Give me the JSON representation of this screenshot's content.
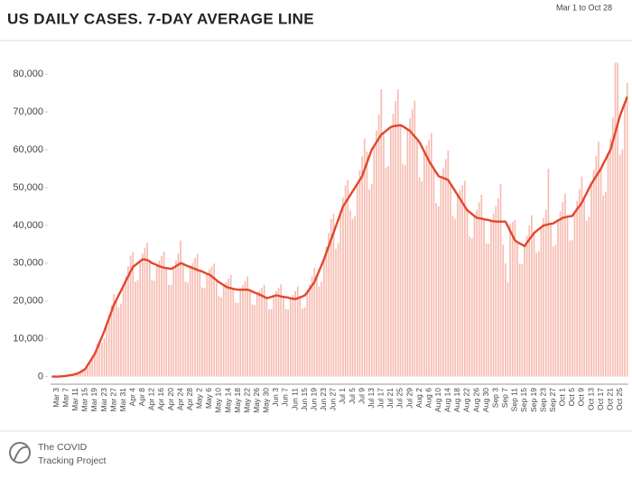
{
  "chart_data": {
    "type": "bar",
    "title": "US DAILY CASES. 7-DAY AVERAGE LINE",
    "subtitle": "Mar 1 to Oct 28",
    "source": [
      "The COVID",
      "Tracking Project"
    ],
    "categories": [
      null,
      null,
      "Mar 3",
      null,
      null,
      null,
      "Mar 7",
      null,
      null,
      null,
      "Mar 11",
      null,
      null,
      null,
      "Mar 15",
      null,
      null,
      null,
      "Mar 19",
      null,
      null,
      null,
      "Mar 23",
      null,
      null,
      null,
      "Mar 27",
      null,
      null,
      null,
      "Mar 31",
      null,
      null,
      null,
      "Apr 4",
      null,
      null,
      null,
      "Apr 8",
      null,
      null,
      null,
      "Apr 12",
      null,
      null,
      null,
      "Apr 16",
      null,
      null,
      null,
      "Apr 20",
      null,
      null,
      null,
      "Apr 24",
      null,
      null,
      null,
      "Apr 28",
      null,
      null,
      null,
      "May 2",
      null,
      null,
      null,
      "May 6",
      null,
      null,
      null,
      "May 10",
      null,
      null,
      null,
      "May 14",
      null,
      null,
      null,
      "May 18",
      null,
      null,
      null,
      "May 22",
      null,
      null,
      null,
      "May 26",
      null,
      null,
      null,
      "May 30",
      null,
      null,
      null,
      "Jun 3",
      null,
      null,
      null,
      "Jun 7",
      null,
      null,
      null,
      "Jun 11",
      null,
      null,
      null,
      "Jun 15",
      null,
      null,
      null,
      "Jun 19",
      null,
      null,
      null,
      "Jun 23",
      null,
      null,
      null,
      "Jun 27",
      null,
      null,
      null,
      "Jul 1",
      null,
      null,
      null,
      "Jul 5",
      null,
      null,
      null,
      "Jul 9",
      null,
      null,
      null,
      "Jul 13",
      null,
      null,
      null,
      "Jul 17",
      null,
      null,
      null,
      "Jul 21",
      null,
      null,
      null,
      "Jul 25",
      null,
      null,
      null,
      "Jul 29",
      null,
      null,
      null,
      "Aug 2",
      null,
      null,
      null,
      "Aug 6",
      null,
      null,
      null,
      "Aug 10",
      null,
      null,
      null,
      "Aug 14",
      null,
      null,
      null,
      "Aug 18",
      null,
      null,
      null,
      "Aug 22",
      null,
      null,
      null,
      "Aug 26",
      null,
      null,
      null,
      "Aug 30",
      null,
      null,
      null,
      "Sep 3",
      null,
      null,
      null,
      "Sep 7",
      null,
      null,
      null,
      "Sep 11",
      null,
      null,
      null,
      "Sep 15",
      null,
      null,
      null,
      "Sep 19",
      null,
      null,
      null,
      "Sep 23",
      null,
      null,
      null,
      "Sep 27",
      null,
      null,
      null,
      "Oct 1",
      null,
      null,
      null,
      "Oct 5",
      null,
      null,
      null,
      "Oct 9",
      null,
      null,
      null,
      "Oct 13",
      null,
      null,
      null,
      "Oct 17",
      null,
      null,
      null,
      "Oct 21",
      null,
      null,
      null,
      "Oct 25",
      null,
      null,
      null
    ],
    "series": [
      {
        "type": "bar",
        "color": "#f7bcb2",
        "values": [
          0,
          0,
          0,
          100,
          100,
          200,
          300,
          300,
          400,
          600,
          800,
          1000,
          1500,
          1900,
          1800,
          2500,
          4000,
          5300,
          6600,
          8600,
          9000,
          9000,
          10200,
          13800,
          16300,
          18900,
          21900,
          20200,
          18300,
          19300,
          24000,
          26600,
          29200,
          32000,
          33000,
          25100,
          25500,
          30500,
          32600,
          34100,
          35400,
          30500,
          25500,
          25300,
          29500,
          30700,
          31900,
          33100,
          28700,
          24300,
          24200,
          28800,
          30700,
          32600,
          36000,
          29800,
          25100,
          24800,
          29000,
          30100,
          31400,
          32400,
          28000,
          23600,
          23400,
          27200,
          28400,
          29100,
          29900,
          25500,
          21300,
          20900,
          24200,
          25000,
          25900,
          26900,
          23200,
          19600,
          19500,
          23000,
          24200,
          25300,
          26500,
          22800,
          19100,
          18900,
          22000,
          22800,
          23500,
          24300,
          20800,
          17800,
          17900,
          21300,
          22600,
          23500,
          24400,
          21100,
          17900,
          17800,
          20700,
          21600,
          22600,
          23800,
          21000,
          18000,
          18300,
          22300,
          24400,
          26500,
          28800,
          26500,
          23800,
          25100,
          31000,
          34400,
          38000,
          41700,
          43000,
          33800,
          35300,
          43300,
          47300,
          50600,
          52000,
          44000,
          41700,
          42500,
          51000,
          54600,
          58300,
          63000,
          59500,
          49500,
          51000,
          61000,
          65100,
          69300,
          76000,
          64500,
          55300,
          55700,
          66000,
          69500,
          72900,
          76000,
          66500,
          56300,
          55900,
          65400,
          68300,
          70600,
          73000,
          62800,
          52700,
          51700,
          59500,
          61200,
          62700,
          64400,
          55000,
          45900,
          45100,
          52800,
          55100,
          57500,
          59800,
          51000,
          42500,
          41700,
          48000,
          49400,
          50600,
          51800,
          44000,
          37000,
          36600,
          42500,
          44100,
          46100,
          48100,
          41600,
          35300,
          35200,
          41200,
          43200,
          45100,
          47200,
          51000,
          34900,
          30000,
          25000,
          40400,
          41000,
          41400,
          35600,
          29900,
          29700,
          34500,
          37200,
          39900,
          42700,
          38000,
          32700,
          33200,
          39500,
          42000,
          44100,
          55000,
          40400,
          34400,
          34800,
          41300,
          43700,
          46200,
          48400,
          42300,
          36000,
          36100,
          43400,
          46500,
          49600,
          52900,
          47300,
          41200,
          42300,
          51000,
          54600,
          58300,
          62100,
          55000,
          47900,
          48900,
          58800,
          63000,
          68500,
          83000,
          83000,
          58700,
          60100,
          72300,
          77700
        ]
      },
      {
        "type": "line",
        "color": "#e2472c",
        "values": [
          0,
          0,
          0,
          0,
          100,
          100,
          200,
          300,
          400,
          500,
          700,
          900,
          1200,
          1600,
          2000,
          3000,
          4000,
          5000,
          6000,
          7500,
          9000,
          10500,
          12000,
          13800,
          15500,
          17200,
          19000,
          20200,
          21500,
          22700,
          24000,
          25300,
          26500,
          27800,
          29000,
          29500,
          30000,
          30500,
          31000,
          31000,
          30800,
          30500,
          30000,
          29800,
          29500,
          29200,
          29000,
          28800,
          28700,
          28600,
          28500,
          28800,
          29200,
          29600,
          30000,
          29800,
          29500,
          29200,
          29000,
          28700,
          28500,
          28200,
          28000,
          27800,
          27500,
          27200,
          27000,
          26500,
          26000,
          25500,
          25000,
          24600,
          24200,
          23800,
          23500,
          23400,
          23200,
          23100,
          23000,
          23000,
          23000,
          23000,
          23000,
          22800,
          22500,
          22200,
          22000,
          21700,
          21400,
          21100,
          20800,
          20900,
          21100,
          21300,
          21500,
          21400,
          21200,
          21100,
          21000,
          20900,
          20700,
          20600,
          20500,
          20700,
          21000,
          21200,
          21500,
          22300,
          23200,
          24100,
          25000,
          26500,
          28000,
          29500,
          31000,
          32800,
          34500,
          36300,
          38000,
          39800,
          41500,
          43300,
          45000,
          46000,
          47000,
          48000,
          49000,
          50000,
          51000,
          52000,
          53000,
          54800,
          56500,
          58300,
          60000,
          61000,
          62000,
          63000,
          64000,
          64500,
          65000,
          65500,
          66000,
          66200,
          66300,
          66400,
          66500,
          66200,
          65800,
          65400,
          65000,
          64200,
          63500,
          62800,
          62000,
          60800,
          59500,
          58300,
          57000,
          56000,
          55000,
          54000,
          53000,
          52800,
          52500,
          52300,
          52000,
          51000,
          50000,
          49000,
          48000,
          47000,
          46000,
          45000,
          44000,
          43500,
          43000,
          42500,
          42000,
          41900,
          41800,
          41600,
          41500,
          41400,
          41200,
          41100,
          41000,
          41000,
          41000,
          41000,
          41000,
          39800,
          38500,
          37300,
          36000,
          35600,
          35200,
          34900,
          34500,
          35400,
          36300,
          37100,
          38000,
          38500,
          39000,
          39500,
          40000,
          40100,
          40300,
          40400,
          40500,
          40900,
          41300,
          41600,
          42000,
          42100,
          42300,
          42400,
          42500,
          43400,
          44300,
          45100,
          46000,
          47300,
          48500,
          49800,
          51000,
          52000,
          53000,
          54000,
          55000,
          56300,
          57500,
          58800,
          60000,
          62300,
          64500,
          66800,
          69000,
          70700,
          72300,
          74000
        ]
      }
    ],
    "ylim": [
      -2000,
      86000
    ],
    "yticks": [
      0,
      {
        "value": 10000,
        "label": "10,000"
      },
      {
        "value": 20000,
        "label": "20,000"
      },
      {
        "value": 30000,
        "label": "30,000"
      },
      {
        "value": 40000,
        "label": "40,000"
      },
      {
        "value": 50000,
        "label": "50,000"
      },
      {
        "value": 60000,
        "label": "60,000"
      },
      {
        "value": 70000,
        "label": "70,000"
      },
      {
        "value": 80000,
        "label": "80,000"
      }
    ]
  }
}
